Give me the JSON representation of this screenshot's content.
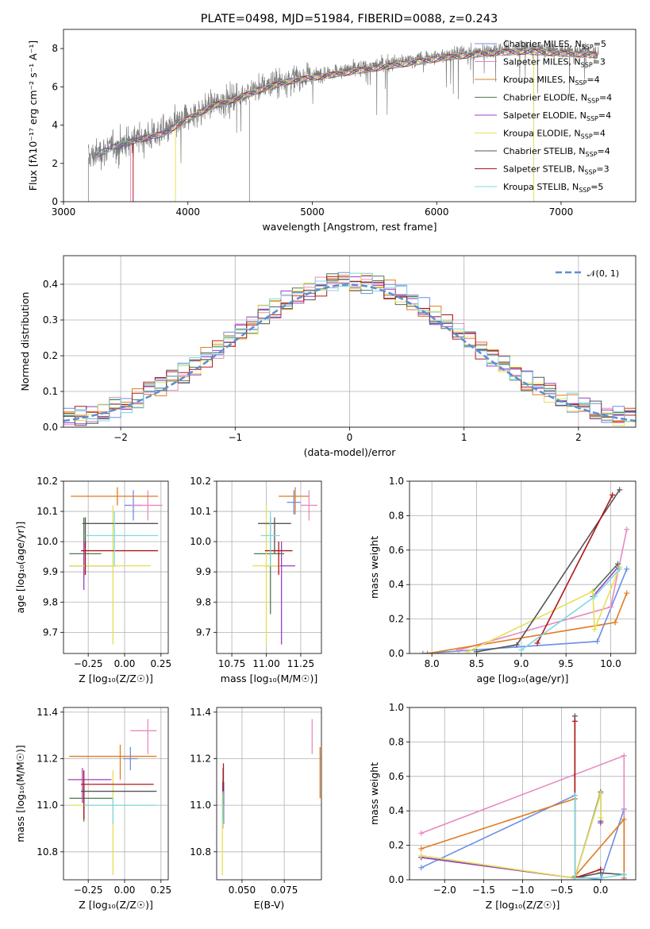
{
  "figure": {
    "title": "PLATE=0498, MJD=51984, FIBERID=0088, z=0.243"
  },
  "models": [
    {
      "name": "Chabrier MILES, N",
      "sub": "SSP",
      "tail": "=5",
      "color": "#6b8ee6"
    },
    {
      "name": "Salpeter MILES, N",
      "sub": "SSP",
      "tail": "=3",
      "color": "#e88ac0"
    },
    {
      "name": "Kroupa MILES, N",
      "sub": "SSP",
      "tail": "=4",
      "color": "#e07b1f"
    },
    {
      "name": "Chabrier ELODIE, N",
      "sub": "SSP",
      "tail": "=4",
      "color": "#4f7a4f"
    },
    {
      "name": "Salpeter ELODIE, N",
      "sub": "SSP",
      "tail": "=4",
      "color": "#9b3fbf"
    },
    {
      "name": "Kroupa ELODIE, N",
      "sub": "SSP",
      "tail": "=4",
      "color": "#e5e055"
    },
    {
      "name": "Chabrier STELIB, N",
      "sub": "SSP",
      "tail": "=4",
      "color": "#555555"
    },
    {
      "name": "Salpeter STELIB, N",
      "sub": "SSP",
      "tail": "=3",
      "color": "#b01818"
    },
    {
      "name": "Kroupa STELIB, N",
      "sub": "SSP",
      "tail": "=5",
      "color": "#7fd8e0"
    }
  ],
  "chart_data": [
    {
      "id": "spectrum",
      "type": "line",
      "xlabel": "wavelength [Angstrom, rest frame]",
      "ylabel": "Flux [f$_\\lambda$10$^{-17}$ erg cm$^{-2}$ s$^{-1}$ A$^{-1}$]",
      "ylabel_display": "Flux [fλ10⁻¹⁷ erg cm⁻² s⁻¹ A⁻¹]",
      "xlim": [
        3000,
        7600
      ],
      "ylim": [
        0,
        9
      ],
      "xticks": [
        3000,
        4000,
        5000,
        6000,
        7000
      ],
      "yticks": [
        0,
        2,
        4,
        6,
        8
      ],
      "data_color": "#7f7f7f",
      "continuum": [
        [
          3200,
          2.3
        ],
        [
          3400,
          2.9
        ],
        [
          3600,
          3.3
        ],
        [
          3800,
          3.6
        ],
        [
          4000,
          4.4
        ],
        [
          4200,
          5.1
        ],
        [
          4400,
          5.5
        ],
        [
          4600,
          6.0
        ],
        [
          4800,
          6.4
        ],
        [
          5000,
          6.6
        ],
        [
          5200,
          6.8
        ],
        [
          5500,
          7.1
        ],
        [
          5800,
          7.4
        ],
        [
          6100,
          7.7
        ],
        [
          6400,
          7.9
        ],
        [
          6700,
          8.0
        ],
        [
          7000,
          7.9
        ],
        [
          7300,
          7.8
        ]
      ],
      "data_range": [
        3200,
        7300
      ],
      "data_gap": [
        4490,
        4500
      ],
      "model_dips": [
        {
          "x": 3540,
          "model": 1
        },
        {
          "x": 3560,
          "model": 7
        },
        {
          "x": 3900,
          "model": 5
        },
        {
          "x": 6780,
          "model": 5
        }
      ]
    },
    {
      "id": "residuals",
      "type": "line",
      "xlabel": "(data-model)/error",
      "ylabel": "Normed distribution",
      "xlim": [
        -2.5,
        2.5
      ],
      "ylim": [
        0,
        0.48
      ],
      "xticks": [
        -2,
        -1,
        0,
        1,
        2
      ],
      "xticklabels": [
        "−2",
        "−1",
        "0",
        "1",
        "2"
      ],
      "yticks": [
        0.0,
        0.1,
        0.2,
        0.3,
        0.4
      ],
      "yticklabels": [
        "0.0",
        "0.1",
        "0.2",
        "0.3",
        "0.4"
      ],
      "legend": "$\\mathcal{N}(0,1)$",
      "legend_display": "𝒩(0, 1)",
      "legend_loc": "upper right",
      "normal_color": "#5b8ed6",
      "bin_width": 0.1,
      "bin_start": -2.5
    },
    {
      "id": "age-Z",
      "type": "scatter",
      "xlabel": "Z [log$_{10}$(Z/Z$_\\odot$)]",
      "xlabel_display": "Z [log₁₀(Z/Z☉)]",
      "ylabel": "age  [log$_{10}$(age/yr)]",
      "ylabel_display": "age  [log₁₀(age/yr)]",
      "xlim": [
        -0.42,
        0.3
      ],
      "ylim": [
        9.63,
        10.2
      ],
      "xticks": [
        -0.25,
        0.0,
        0.25
      ],
      "xticklabels": [
        "−0.25",
        "0.00",
        "0.25"
      ],
      "yticks": [
        9.7,
        9.8,
        9.9,
        10.0,
        10.1,
        10.2
      ],
      "yticklabels": [
        "9.7",
        "9.8",
        "9.9",
        "10.0",
        "10.1",
        "10.2"
      ],
      "points": [
        {
          "m": 0,
          "x": 0.06,
          "y": 10.12,
          "xerr": [
            0.06,
            0.06
          ],
          "yerr": [
            0.05,
            0.05
          ]
        },
        {
          "m": 1,
          "x": 0.16,
          "y": 10.12,
          "xerr": [
            0.12,
            0.1
          ],
          "yerr": [
            0.05,
            0.05
          ]
        },
        {
          "m": 2,
          "x": -0.05,
          "y": 10.15,
          "xerr": [
            0.32,
            0.28
          ],
          "yerr": [
            0.03,
            0.03
          ]
        },
        {
          "m": 3,
          "x": -0.28,
          "y": 9.96,
          "xerr": [
            0.1,
            0.12
          ],
          "yerr": [
            0.08,
            0.12
          ]
        },
        {
          "m": 4,
          "x": -0.28,
          "y": 9.92,
          "xerr": [
            0.1,
            0.22
          ],
          "yerr": [
            0.08,
            0.08
          ]
        },
        {
          "m": 5,
          "x": -0.08,
          "y": 9.92,
          "xerr": [
            0.3,
            0.26
          ],
          "yerr": [
            0.26,
            0.2
          ]
        },
        {
          "m": 6,
          "x": -0.27,
          "y": 10.06,
          "xerr": [
            0.02,
            0.5
          ],
          "yerr": [
            0.08,
            0.02
          ]
        },
        {
          "m": 7,
          "x": -0.27,
          "y": 9.97,
          "xerr": [
            0.03,
            0.5
          ],
          "yerr": [
            0.08,
            0.03
          ]
        },
        {
          "m": 8,
          "x": -0.07,
          "y": 10.02,
          "xerr": [
            0.2,
            0.3
          ],
          "yerr": [
            0.1,
            0.08
          ]
        }
      ]
    },
    {
      "id": "age-mass",
      "type": "scatter",
      "xlabel": "mass [log$_{10}$(M/M$_\\odot$)]",
      "xlabel_display": "mass [log₁₀(M/M☉)]",
      "xlim": [
        10.64,
        11.4
      ],
      "ylim": [
        9.63,
        10.2
      ],
      "xticks": [
        10.75,
        11.0,
        11.25
      ],
      "xticklabels": [
        "10.75",
        "11.00",
        "11.25"
      ],
      "yticks": [
        9.7,
        9.8,
        9.9,
        10.0,
        10.1,
        10.2
      ],
      "yticklabels": [
        "9.7",
        "9.8",
        "9.9",
        "10.0",
        "10.1",
        "10.2"
      ],
      "points": [
        {
          "m": 0,
          "x": 11.2,
          "y": 10.13,
          "xerr": [
            0.05,
            0.05
          ],
          "yerr": [
            0.04,
            0.04
          ]
        },
        {
          "m": 1,
          "x": 11.31,
          "y": 10.12,
          "xerr": [
            0.06,
            0.06
          ],
          "yerr": [
            0.05,
            0.05
          ]
        },
        {
          "m": 2,
          "x": 11.21,
          "y": 10.15,
          "xerr": [
            0.12,
            0.1
          ],
          "yerr": [
            0.06,
            0.03
          ]
        },
        {
          "m": 3,
          "x": 11.03,
          "y": 9.96,
          "xerr": [
            0.12,
            0.1
          ],
          "yerr": [
            0.2,
            0.12
          ]
        },
        {
          "m": 4,
          "x": 11.11,
          "y": 9.92,
          "xerr": [
            0.12,
            0.1
          ],
          "yerr": [
            0.26,
            0.08
          ]
        },
        {
          "m": 5,
          "x": 11.0,
          "y": 9.92,
          "xerr": [
            0.1,
            0.1
          ],
          "yerr": [
            0.26,
            0.2
          ]
        },
        {
          "m": 6,
          "x": 11.06,
          "y": 10.06,
          "xerr": [
            0.12,
            0.12
          ],
          "yerr": [
            0.1,
            0.02
          ]
        },
        {
          "m": 7,
          "x": 11.09,
          "y": 9.97,
          "xerr": [
            0.1,
            0.1
          ],
          "yerr": [
            0.08,
            0.03
          ]
        },
        {
          "m": 8,
          "x": 11.03,
          "y": 10.02,
          "xerr": [
            0.07,
            0.07
          ],
          "yerr": [
            0.1,
            0.08
          ]
        }
      ]
    },
    {
      "id": "massweight-age",
      "type": "line",
      "xlabel": "age  [log$_{10}$(age/yr)]",
      "xlabel_display": "age  [log₁₀(age/yr)]",
      "ylabel": "mass weight",
      "xlim": [
        7.75,
        10.28
      ],
      "ylim": [
        0,
        1
      ],
      "xticks": [
        8.0,
        8.5,
        9.0,
        9.5,
        10.0
      ],
      "xticklabels": [
        "8.0",
        "8.5",
        "9.0",
        "9.5",
        "10.0"
      ],
      "yticks": [
        0.0,
        0.2,
        0.4,
        0.6,
        0.8,
        1.0
      ],
      "yticklabels": [
        "0.0",
        "0.2",
        "0.4",
        "0.6",
        "0.8",
        "1.0"
      ],
      "series": [
        {
          "m": 0,
          "x": [
            7.9,
            9.85,
            10.18
          ],
          "y": [
            0.0,
            0.07,
            0.49
          ]
        },
        {
          "m": 1,
          "x": [
            8.3,
            10.0,
            10.18
          ],
          "y": [
            0.02,
            0.27,
            0.72
          ]
        },
        {
          "m": 2,
          "x": [
            7.95,
            10.05,
            10.18
          ],
          "y": [
            0.0,
            0.18,
            0.35
          ]
        },
        {
          "m": 3,
          "x": [
            9.8,
            10.08
          ],
          "y": [
            0.36,
            0.52
          ]
        },
        {
          "m": 4,
          "x": [
            9.8,
            10.08
          ],
          "y": [
            0.33,
            0.5
          ]
        },
        {
          "m": 5,
          "x": [
            8.4,
            9.8,
            9.82,
            10.1
          ],
          "y": [
            0.01,
            0.36,
            0.14,
            0.5
          ]
        },
        {
          "m": 6,
          "x": [
            8.5,
            8.95,
            10.1
          ],
          "y": [
            0.01,
            0.05,
            0.95
          ]
        },
        {
          "m": 7,
          "x": [
            9.18,
            10.02
          ],
          "y": [
            0.06,
            0.92
          ]
        },
        {
          "m": 8,
          "x": [
            9.0,
            9.82,
            10.1
          ],
          "y": [
            0.02,
            0.33,
            0.49
          ]
        }
      ]
    },
    {
      "id": "mass-Z",
      "type": "scatter",
      "xlabel": "Z [log$_{10}$(Z/Z$_\\odot$)]",
      "xlabel_display": "Z [log₁₀(Z/Z☉)]",
      "ylabel": "mass [log$_{10}$(M/M$_\\odot$)]",
      "ylabel_display": "mass [log₁₀(M/M☉)]",
      "xlim": [
        -0.42,
        0.3
      ],
      "ylim": [
        10.68,
        11.42
      ],
      "xticks": [
        -0.25,
        0.0,
        0.25
      ],
      "xticklabels": [
        "−0.25",
        "0.00",
        "0.25"
      ],
      "yticks": [
        10.8,
        11.0,
        11.2,
        11.4
      ],
      "yticklabels": [
        "10.8",
        "11.0",
        "11.2",
        "11.4"
      ],
      "points": [
        {
          "m": 0,
          "x": 0.04,
          "y": 11.2,
          "xerr": [
            0.05,
            0.05
          ],
          "yerr": [
            0.05,
            0.05
          ]
        },
        {
          "m": 1,
          "x": 0.16,
          "y": 11.32,
          "xerr": [
            0.12,
            0.06
          ],
          "yerr": [
            0.1,
            0.05
          ]
        },
        {
          "m": 2,
          "x": -0.03,
          "y": 11.21,
          "xerr": [
            0.35,
            0.25
          ],
          "yerr": [
            0.1,
            0.05
          ]
        },
        {
          "m": 3,
          "x": -0.28,
          "y": 11.03,
          "xerr": [
            0.1,
            0.2
          ],
          "yerr": [
            0.1,
            0.05
          ]
        },
        {
          "m": 4,
          "x": -0.29,
          "y": 11.11,
          "xerr": [
            0.1,
            0.2
          ],
          "yerr": [
            0.1,
            0.05
          ]
        },
        {
          "m": 5,
          "x": -0.08,
          "y": 11.0,
          "xerr": [
            0.3,
            0.26
          ],
          "yerr": [
            0.3,
            0.15
          ]
        },
        {
          "m": 6,
          "x": -0.28,
          "y": 11.06,
          "xerr": [
            0.02,
            0.5
          ],
          "yerr": [
            0.12,
            0.03
          ]
        },
        {
          "m": 7,
          "x": -0.28,
          "y": 11.09,
          "xerr": [
            0.02,
            0.48
          ],
          "yerr": [
            0.15,
            0.06
          ]
        },
        {
          "m": 8,
          "x": -0.08,
          "y": 11.0,
          "xerr": [
            0.2,
            0.3
          ],
          "yerr": [
            0.08,
            0.03
          ]
        }
      ]
    },
    {
      "id": "mass-ebv",
      "type": "scatter",
      "xlabel": "E(B-V)",
      "xlim": [
        0.035,
        0.097
      ],
      "ylim": [
        10.68,
        11.42
      ],
      "xticks": [
        0.05,
        0.075
      ],
      "xticklabels": [
        "0.050",
        "0.075"
      ],
      "yticks": [
        10.8,
        11.0,
        11.2,
        11.4
      ],
      "yticklabels": [
        "10.8",
        "11.0",
        "11.2",
        "11.4"
      ],
      "points": [
        {
          "m": 0,
          "x": 0.0392,
          "y": 11.0,
          "yerr": [
            0.08,
            0.1
          ]
        },
        {
          "m": 1,
          "x": 0.0915,
          "y": 11.3,
          "yerr": [
            0.08,
            0.07
          ]
        },
        {
          "m": 2,
          "x": 0.0962,
          "y": 11.15,
          "yerr": [
            0.12,
            0.1
          ]
        },
        {
          "m": 3,
          "x": 0.0388,
          "y": 11.03,
          "yerr": [
            0.1,
            0.08
          ]
        },
        {
          "m": 4,
          "x": 0.0386,
          "y": 11.0,
          "yerr": [
            0.1,
            0.1
          ]
        },
        {
          "m": 5,
          "x": 0.0384,
          "y": 10.9,
          "yerr": [
            0.2,
            0.15
          ]
        },
        {
          "m": 6,
          "x": 0.0388,
          "y": 11.06,
          "yerr": [
            0.12,
            0.1
          ]
        },
        {
          "m": 7,
          "x": 0.039,
          "y": 11.1,
          "yerr": [
            0.1,
            0.08
          ]
        },
        {
          "m": 8,
          "x": 0.0388,
          "y": 11.0,
          "yerr": [
            0.08,
            0.06
          ]
        }
      ]
    },
    {
      "id": "massweight-Z",
      "type": "line",
      "xlabel": "Z [log$_{10}$(Z/Z$_\\odot$)]",
      "xlabel_display": "Z [log₁₀(Z/Z☉)]",
      "ylabel": "mass weight",
      "xlim": [
        -2.45,
        0.45
      ],
      "ylim": [
        0,
        1
      ],
      "xticks": [
        -2.0,
        -1.5,
        -1.0,
        -0.5,
        0.0
      ],
      "xticklabels": [
        "−2.0",
        "−1.5",
        "−1.0",
        "−0.5",
        "0.0"
      ],
      "yticks": [
        0.0,
        0.2,
        0.4,
        0.6,
        0.8,
        1.0
      ],
      "yticklabels": [
        "0.0",
        "0.2",
        "0.4",
        "0.6",
        "0.8",
        "1.0"
      ],
      "series": [
        {
          "m": 0,
          "x": [
            -2.3,
            -0.33,
            -0.33,
            0.0,
            0.3,
            0.3
          ],
          "y": [
            0.07,
            0.49,
            0.02,
            0.0,
            0.41,
            0.01
          ]
        },
        {
          "m": 1,
          "x": [
            -2.3,
            0.3,
            0.3
          ],
          "y": [
            0.27,
            0.72,
            0.01
          ]
        },
        {
          "m": 2,
          "x": [
            -2.3,
            -0.33,
            -0.33,
            0.3,
            0.3
          ],
          "y": [
            0.18,
            0.47,
            0.02,
            0.35,
            0.0
          ]
        },
        {
          "m": 3,
          "x": [
            -2.3,
            -0.33,
            0.0,
            0.0
          ],
          "y": [
            0.13,
            0.01,
            0.51,
            0.34
          ]
        },
        {
          "m": 4,
          "x": [
            -2.3,
            -0.33,
            0.0,
            0.0
          ],
          "y": [
            0.13,
            0.01,
            0.5,
            0.33
          ]
        },
        {
          "m": 5,
          "x": [
            -2.3,
            -0.33,
            0.0,
            0.0
          ],
          "y": [
            0.14,
            0.01,
            0.5,
            0.36
          ]
        },
        {
          "m": 6,
          "x": [
            -0.33,
            -0.33,
            0.0,
            0.3
          ],
          "y": [
            0.95,
            0.01,
            0.04,
            0.03
          ]
        },
        {
          "m": 7,
          "x": [
            -0.33,
            -0.33,
            0.0
          ],
          "y": [
            0.92,
            0.01,
            0.06
          ]
        },
        {
          "m": 8,
          "x": [
            -0.33,
            -0.33,
            0.0,
            0.3
          ],
          "y": [
            0.49,
            0.01,
            0.01,
            0.03
          ]
        }
      ]
    }
  ]
}
